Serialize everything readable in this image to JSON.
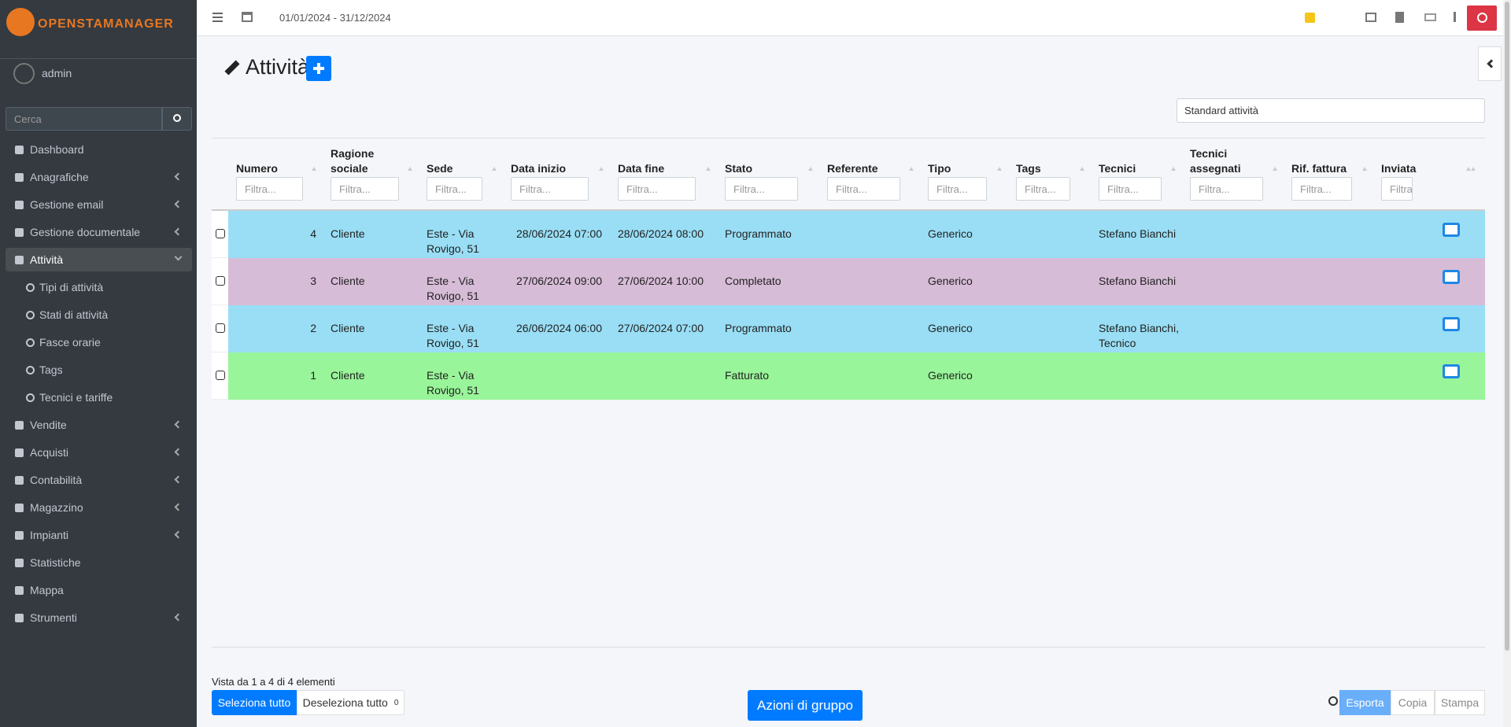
{
  "header": {
    "logo": "OPENSTAMANAGER",
    "period": "01/01/2024 - 31/12/2024"
  },
  "sidebar": {
    "user": "admin",
    "search_placeholder": "Cerca",
    "menu": [
      {
        "label": "Dashboard"
      },
      {
        "label": "Anagrafiche",
        "submenu": true
      },
      {
        "label": "Gestione email",
        "submenu": true
      },
      {
        "label": "Gestione documentale",
        "submenu": true
      },
      {
        "label": "Attività",
        "submenu": true,
        "active": true,
        "children": [
          "Tipi di attività",
          "Stati di attività",
          "Fasce orarie",
          "Tags",
          "Tecnici e tariffe"
        ]
      },
      {
        "label": "Vendite",
        "submenu": true
      },
      {
        "label": "Acquisti",
        "submenu": true
      },
      {
        "label": "Contabilità",
        "submenu": true
      },
      {
        "label": "Magazzino",
        "submenu": true
      },
      {
        "label": "Impianti",
        "submenu": true
      },
      {
        "label": "Statistiche"
      },
      {
        "label": "Mappa"
      },
      {
        "label": "Strumenti",
        "submenu": true
      }
    ]
  },
  "page": {
    "title": "Attività",
    "view_select": "Standard attività"
  },
  "table": {
    "filter_placeholder": "Filtra...",
    "columns": [
      "Numero",
      "Ragione sociale",
      "Sede",
      "Data inizio",
      "Data fine",
      "Stato",
      "Referente",
      "Tipo",
      "Tags",
      "Tecnici",
      "Tecnici assegnati",
      "Rif. fattura",
      "Inviata"
    ],
    "rows": [
      {
        "color": "#99def5",
        "cells": [
          4,
          "Cliente",
          "Este - Via Rovigo, 51",
          "28/06/2024 07:00",
          "28/06/2024 08:00",
          "Programmato",
          null,
          "Generico",
          null,
          "Stefano Bianchi",
          null,
          null,
          null
        ]
      },
      {
        "color": "#d7bcd7",
        "cells": [
          3,
          "Cliente",
          "Este - Via Rovigo, 51",
          "27/06/2024 09:00",
          "27/06/2024 10:00",
          "Completato",
          null,
          "Generico",
          null,
          "Stefano Bianchi",
          null,
          null,
          null
        ]
      },
      {
        "color": "#99def5",
        "cells": [
          2,
          "Cliente",
          "Este - Via Rovigo, 51",
          "26/06/2024 06:00",
          "27/06/2024 07:00",
          "Programmato",
          null,
          "Generico",
          null,
          "Stefano Bianchi, Tecnico",
          null,
          null,
          null
        ]
      },
      {
        "color": "#99f599",
        "cells": [
          1,
          "Cliente",
          "Este - Via Rovigo, 51",
          null,
          null,
          "Fatturato",
          null,
          "Generico",
          null,
          null,
          null,
          null,
          null
        ]
      }
    ]
  },
  "footer": {
    "summary": "Vista da 1 a 4 di 4 elementi",
    "select_all": "Seleziona tutto",
    "deselect_all": "Deseleziona tutto",
    "selected_count": 0,
    "bulk_actions": "Azioni di gruppo",
    "export": "Esporta",
    "copy": "Copia",
    "print": "Stampa"
  }
}
